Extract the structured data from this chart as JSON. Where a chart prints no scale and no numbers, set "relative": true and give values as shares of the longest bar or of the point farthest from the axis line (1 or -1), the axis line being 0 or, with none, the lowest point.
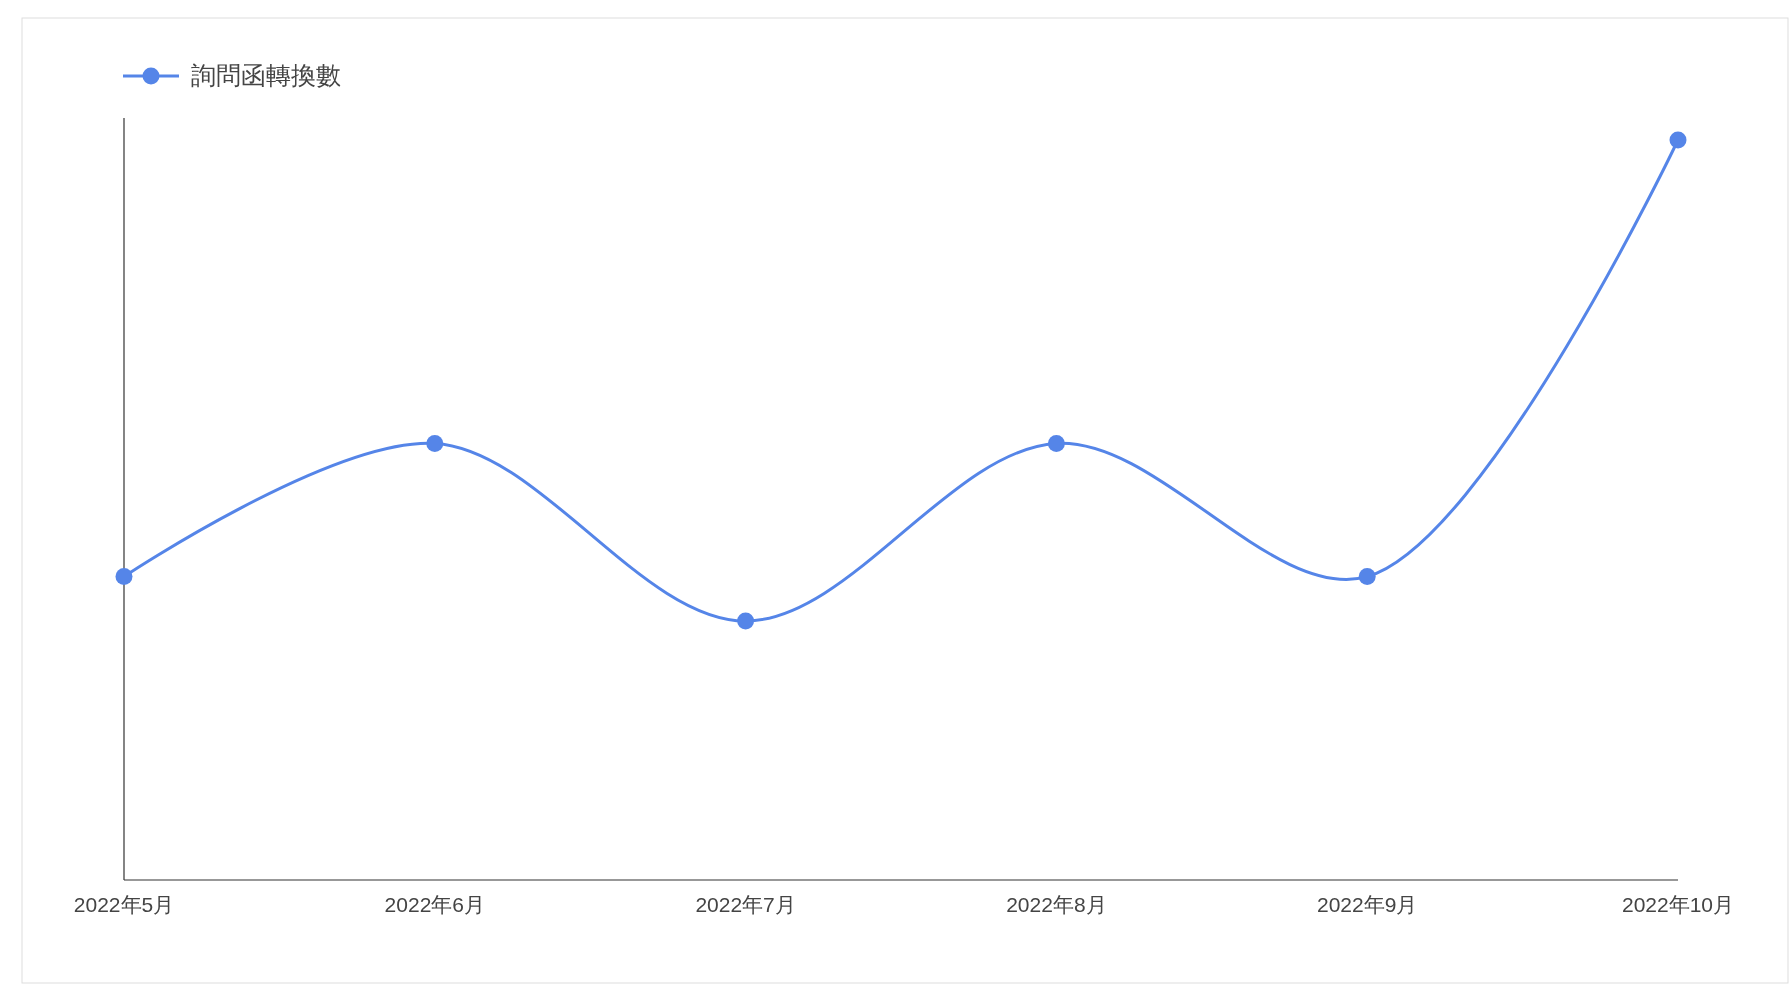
{
  "chart_data": {
    "type": "line",
    "relative": true,
    "categories": [
      "2022年5月",
      "2022年6月",
      "2022年7月",
      "2022年8月",
      "2022年9月",
      "2022年10月"
    ],
    "series": [
      {
        "name": "詢問函轉換數",
        "color": "#5585e8",
        "values": [
          0.41,
          0.59,
          0.35,
          0.59,
          0.41,
          1
        ]
      }
    ],
    "marker": "circle",
    "legend": "top left"
  }
}
